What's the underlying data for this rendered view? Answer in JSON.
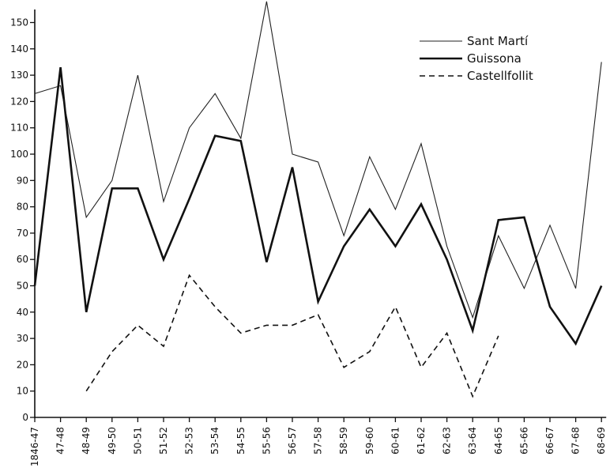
{
  "chart_data": {
    "type": "line",
    "categories": [
      "1846-47",
      "47-48",
      "48-49",
      "49-50",
      "50-51",
      "51-52",
      "52-53",
      "53-54",
      "54-55",
      "55-56",
      "56-57",
      "57-58",
      "58-59",
      "59-60",
      "60-61",
      "61-62",
      "62-63",
      "63-64",
      "64-65",
      "65-66",
      "66-67",
      "67-68",
      "68-69"
    ],
    "ylim": [
      0,
      155
    ],
    "yticks": [
      0,
      10,
      20,
      30,
      40,
      50,
      60,
      70,
      80,
      90,
      100,
      110,
      120,
      130,
      140,
      150
    ],
    "title": "",
    "xlabel": "",
    "ylabel": "",
    "grid": false,
    "legend_position": "top-right",
    "series": [
      {
        "name": "Sant Martí",
        "style": "thin-solid",
        "color": "#222222",
        "values": [
          123,
          126,
          76,
          90,
          130,
          82,
          110,
          123,
          106,
          158,
          100,
          97,
          69,
          99,
          79,
          104,
          65,
          38,
          69,
          49,
          73,
          49,
          135
        ]
      },
      {
        "name": "Guissona",
        "style": "thick-solid",
        "color": "#111111",
        "values": [
          50,
          133,
          40,
          87,
          87,
          60,
          83,
          107,
          105,
          59,
          95,
          44,
          65,
          79,
          65,
          81,
          60,
          33,
          75,
          76,
          42,
          28,
          50
        ]
      },
      {
        "name": "Castellfollit",
        "style": "dashed",
        "color": "#111111",
        "values": [
          null,
          null,
          10,
          25,
          35,
          27,
          54,
          42,
          32,
          35,
          35,
          39,
          19,
          25,
          42,
          19,
          32,
          8,
          31,
          null,
          null,
          null,
          null
        ]
      }
    ]
  }
}
